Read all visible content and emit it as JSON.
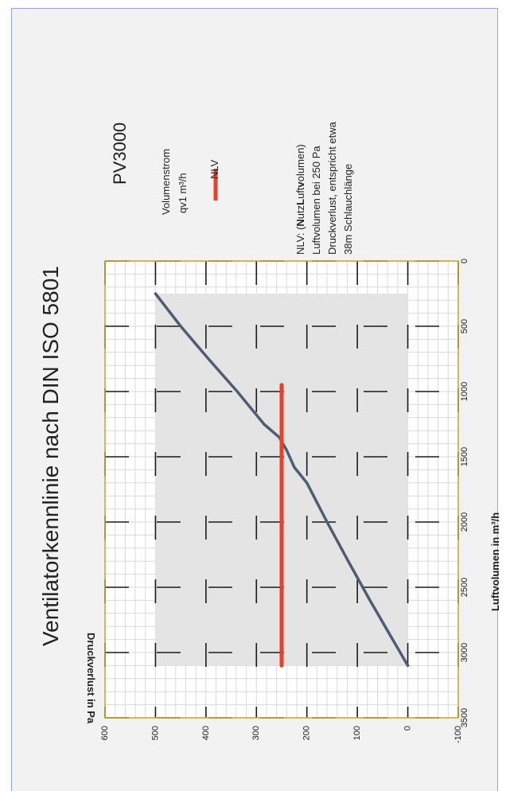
{
  "chart_data": {
    "type": "line",
    "title": "Ventilatorkennlinie nach DIN ISO 5801",
    "model": "PV3000",
    "xlabel": "Luftvolumen in m³/h",
    "ylabel": "Druckverlust in Pa",
    "xlim": [
      0,
      3500
    ],
    "ylim": [
      -100,
      600
    ],
    "x_ticks": [
      "0",
      "500",
      "1000",
      "1500",
      "2000",
      "2500",
      "3000",
      "3500"
    ],
    "y_ticks": [
      "600",
      "500",
      "400",
      "300",
      "200",
      "100",
      "0",
      "-100"
    ],
    "y_tick_values": [
      600,
      500,
      400,
      300,
      200,
      100,
      0,
      -100
    ],
    "shaded_region": {
      "x": [
        250,
        3100
      ],
      "y": [
        0,
        500
      ]
    },
    "series": [
      {
        "name": "Volumenstrom qv1 m³/h",
        "color": "#4d5d73",
        "x": [
          250,
          500,
          750,
          1000,
          1250,
          1350,
          1450,
          1580,
          1700,
          2000,
          2300,
          2600,
          2900,
          3000,
          3100
        ],
        "y": [
          500,
          450,
          395,
          338,
          285,
          255,
          240,
          225,
          200,
          160,
          118,
          75,
          30,
          15,
          0
        ]
      },
      {
        "name": "NLV",
        "color": "#e8412a",
        "x": [
          950,
          3100
        ],
        "y": [
          250,
          250
        ]
      }
    ],
    "legend": [
      {
        "line1": "Volumenstrom",
        "line2": "qv1 m³/h",
        "color": "#ffffff"
      },
      {
        "line1": "NLV",
        "line2": "",
        "color": "#e8412a"
      }
    ],
    "note": {
      "prefix": "NLV: (",
      "b1": "N",
      "mid1": "utz",
      "b2": "L",
      "mid2": "uft",
      "b3": "v",
      "suffix": "olumen)",
      "lines": [
        "Luftvolumen bei 250 Pa",
        "Druckverlust, entspricht etwa",
        "38m Schlauchlänge"
      ]
    }
  }
}
